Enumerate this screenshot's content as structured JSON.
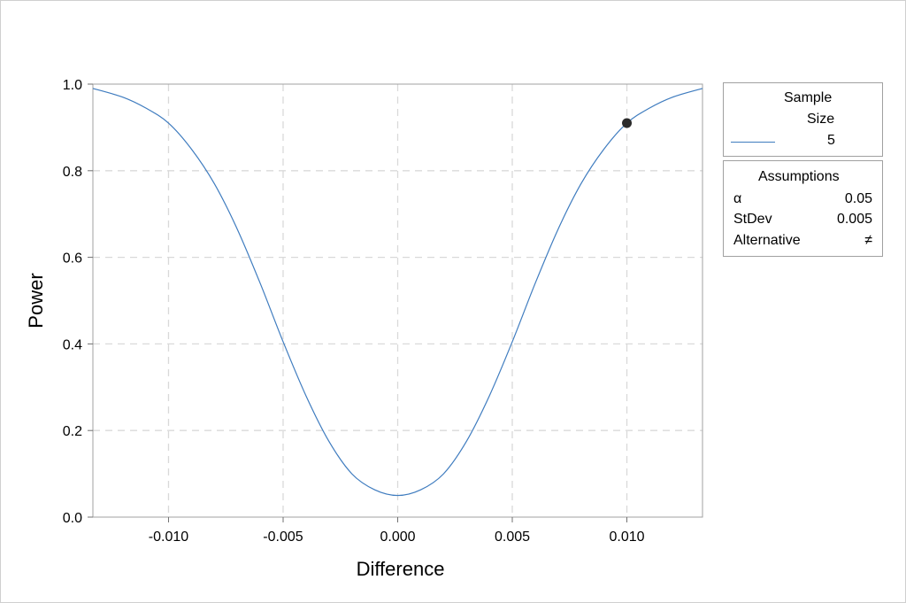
{
  "chart_data": {
    "type": "line",
    "title": "",
    "xlabel": "Difference",
    "ylabel": "Power",
    "xlim": [
      -0.0133,
      0.0133
    ],
    "ylim": [
      0,
      1
    ],
    "x_ticks": [
      {
        "value": -0.01,
        "label": "-0.010"
      },
      {
        "value": -0.005,
        "label": "-0.005"
      },
      {
        "value": 0.0,
        "label": "0.000"
      },
      {
        "value": 0.005,
        "label": "0.005"
      },
      {
        "value": 0.01,
        "label": "0.010"
      }
    ],
    "y_ticks": [
      {
        "value": 0.0,
        "label": "0.0"
      },
      {
        "value": 0.2,
        "label": "0.2"
      },
      {
        "value": 0.4,
        "label": "0.4"
      },
      {
        "value": 0.6,
        "label": "0.6"
      },
      {
        "value": 0.8,
        "label": "0.8"
      },
      {
        "value": 1.0,
        "label": "1.0"
      }
    ],
    "grid": true,
    "series": [
      {
        "name": "5",
        "color": "#3f7cbf",
        "x": [
          -0.0133,
          -0.012,
          -0.011,
          -0.01,
          -0.009,
          -0.008,
          -0.007,
          -0.006,
          -0.005,
          -0.004,
          -0.003,
          -0.002,
          -0.001,
          0.0,
          0.001,
          0.002,
          0.003,
          0.004,
          0.005,
          0.006,
          0.007,
          0.008,
          0.009,
          0.01,
          0.011,
          0.012,
          0.0133
        ],
        "y": [
          0.99,
          0.97,
          0.945,
          0.91,
          0.85,
          0.77,
          0.665,
          0.54,
          0.405,
          0.28,
          0.175,
          0.1,
          0.063,
          0.05,
          0.063,
          0.1,
          0.175,
          0.28,
          0.405,
          0.54,
          0.665,
          0.77,
          0.85,
          0.91,
          0.945,
          0.97,
          0.99
        ]
      }
    ],
    "highlight_point": {
      "x": 0.01,
      "y": 0.91
    }
  },
  "legend": {
    "sample_title_line1": "Sample",
    "sample_title_line2": "Size",
    "sample_value": "5",
    "assumptions_title": "Assumptions",
    "rows": [
      {
        "label": "α",
        "value": "0.05"
      },
      {
        "label": "StDev",
        "value": "0.005"
      },
      {
        "label": "Alternative",
        "value": "≠"
      }
    ]
  }
}
